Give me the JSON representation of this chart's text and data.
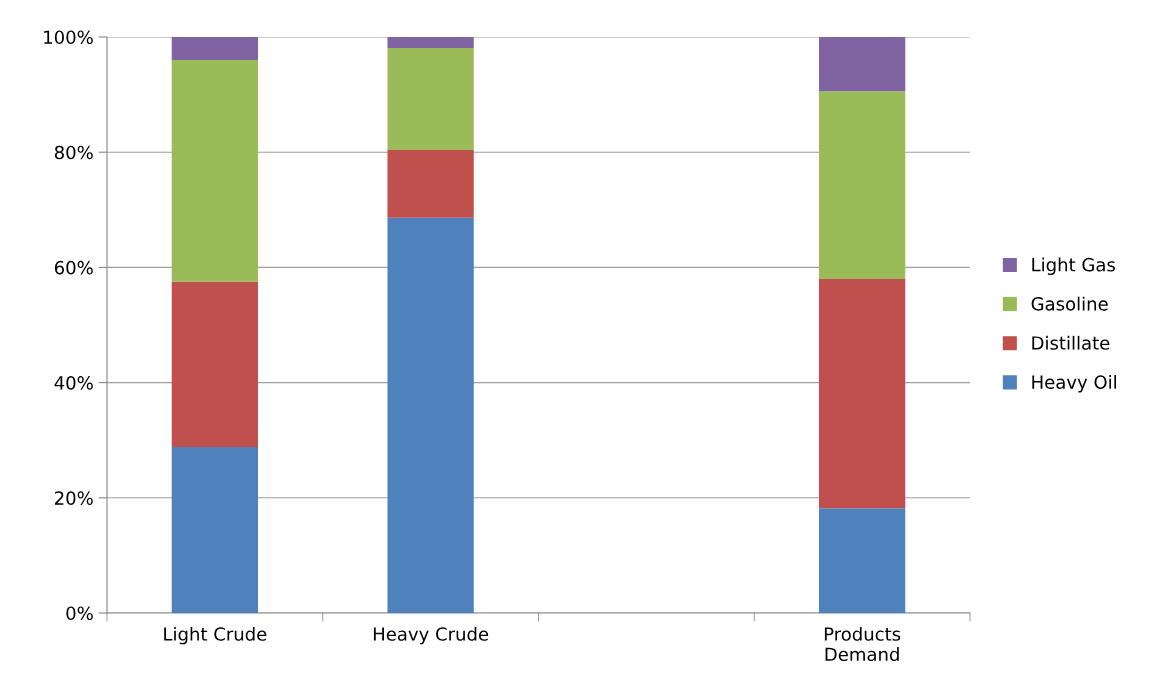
{
  "chart_data": {
    "type": "bar",
    "stacked": true,
    "categories": [
      "Light Crude",
      "Heavy Crude",
      null,
      "Products\nDemand"
    ],
    "series": [
      {
        "name": "Heavy Oil",
        "color": "#4f81bd",
        "values": [
          28.8,
          68.6,
          null,
          18.2
        ]
      },
      {
        "name": "Distillate",
        "color": "#c0504d",
        "values": [
          28.7,
          11.8,
          null,
          39.8
        ]
      },
      {
        "name": "Gasoline",
        "color": "#9bbb59",
        "values": [
          38.5,
          17.7,
          null,
          32.6
        ]
      },
      {
        "name": "Light Gas",
        "color": "#8064a2",
        "values": [
          4.0,
          1.9,
          null,
          9.4
        ]
      }
    ],
    "ylim": [
      0,
      100
    ],
    "yticks": [
      {
        "value": 0,
        "label": "0%"
      },
      {
        "value": 20,
        "label": "20%"
      },
      {
        "value": 40,
        "label": "40%"
      },
      {
        "value": 60,
        "label": "60%"
      },
      {
        "value": 80,
        "label": "80%"
      },
      {
        "value": 100,
        "label": "100%"
      }
    ],
    "grid": "y",
    "legend": "right"
  }
}
